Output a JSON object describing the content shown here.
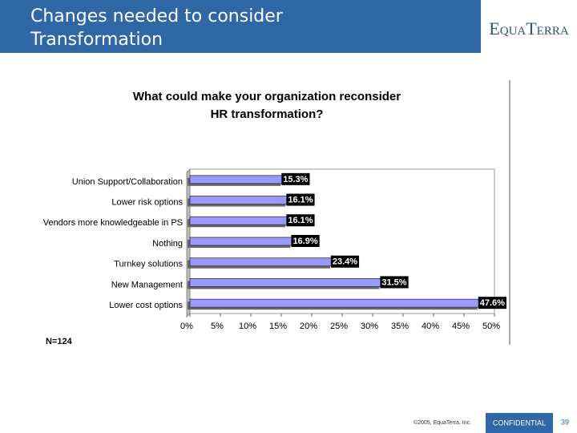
{
  "header": {
    "title_lines": [
      "Changes needed to consider",
      "Transformation"
    ],
    "logo": "EquaTerra"
  },
  "chart_data": {
    "type": "hbar",
    "title_lines": [
      "What could make your organization reconsider",
      "HR transformation?"
    ],
    "categories": [
      "Union Support/Collaboration",
      "Lower risk options",
      "Vendors more knowledgeable in PS",
      "Nothing",
      "Turnkey solutions",
      "New Management",
      "Lower cost options"
    ],
    "values": [
      15.3,
      16.1,
      16.1,
      16.9,
      23.4,
      31.5,
      47.6
    ],
    "value_labels": [
      "15.3%",
      "16.1%",
      "16.1%",
      "16.9%",
      "23.4%",
      "31.5%",
      "47.6%"
    ],
    "color": "#9999ff",
    "xlim": [
      0,
      50
    ],
    "xticks": [
      {
        "value": 0,
        "label": "0%"
      },
      {
        "value": 5,
        "label": "5%"
      },
      {
        "value": 10,
        "label": "10%"
      },
      {
        "value": 15,
        "label": "15%"
      },
      {
        "value": 20,
        "label": "20%"
      },
      {
        "value": 25,
        "label": "25%"
      },
      {
        "value": 30,
        "label": "30%"
      },
      {
        "value": 35,
        "label": "35%"
      },
      {
        "value": 40,
        "label": "40%"
      },
      {
        "value": 45,
        "label": "45%"
      },
      {
        "value": 50,
        "label": "50%"
      }
    ],
    "note": "N=124"
  },
  "footer": {
    "copyright": "©2005, EquaTerra, Inc.",
    "confidential": "CONFIDENTIAL",
    "page": "39"
  }
}
